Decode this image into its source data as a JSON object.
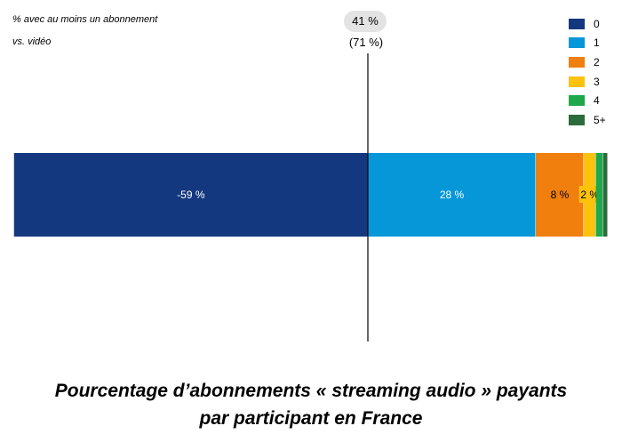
{
  "notes": {
    "line1": "% avec au moins un abonnement",
    "line2": "vs. vidéo"
  },
  "totals": {
    "audio_pill": "41 %",
    "video_paren": "(71 %)"
  },
  "chart_data": {
    "type": "bar",
    "orientation": "horizontal-stacked",
    "diverging_at": "0",
    "categories": [
      "0",
      "1",
      "2",
      "3",
      "4",
      "5+"
    ],
    "values": [
      -59,
      28,
      8,
      2,
      1.2,
      0.8
    ],
    "colors": [
      "#14387f",
      "#0597d8",
      "#f07f0d",
      "#fcc20e",
      "#1ea84b",
      "#2c6b3c"
    ],
    "data_labels": [
      "-59 %",
      "28 %",
      "8 %",
      "2 %",
      "",
      ""
    ],
    "title": "Pourcentage d’abonnements « streaming audio » payants par participant en France",
    "legend": "top-right"
  },
  "footer": {
    "line1": "Pourcentage d’abonnements « streaming audio » payants",
    "line2": "par participant en France"
  }
}
